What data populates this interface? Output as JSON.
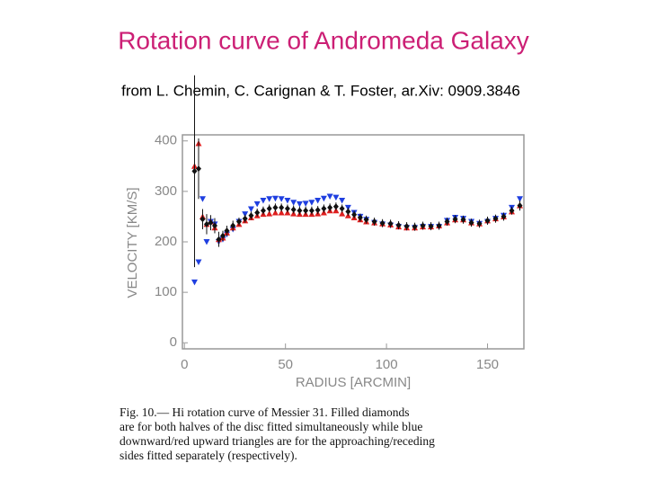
{
  "title": "Rotation curve of Andromeda Galaxy",
  "subtitle": "from L. Chemin, C. Carignan & T. Foster, ar.Xiv: 0909.3846",
  "chart_data": {
    "type": "scatter",
    "x_label": "RADIUS [ARCMIN]",
    "y_label": "VELOCITY [KM/S]",
    "xlim": [
      -1,
      168
    ],
    "ylim": [
      -12,
      412
    ],
    "xticks": [
      0,
      50,
      100,
      150
    ],
    "yticks": [
      0,
      100,
      200,
      300,
      400
    ],
    "x": [
      5,
      7,
      9,
      11,
      13,
      15,
      17,
      19,
      21,
      24,
      27,
      30,
      33,
      36,
      39,
      42,
      45,
      48,
      51,
      54,
      57,
      60,
      63,
      66,
      69,
      72,
      75,
      78,
      81,
      84,
      87,
      90,
      94,
      98,
      102,
      106,
      110,
      114,
      118,
      122,
      126,
      130,
      134,
      138,
      142,
      146,
      150,
      154,
      158,
      162,
      166
    ],
    "series": [
      {
        "color": "#1f3fe0",
        "marker": "triangle-down",
        "values": [
          120,
          160,
          285,
          200,
          240,
          235,
          200,
          205,
          215,
          225,
          240,
          255,
          265,
          275,
          282,
          285,
          286,
          285,
          282,
          278,
          275,
          276,
          278,
          282,
          286,
          290,
          288,
          282,
          268,
          258,
          250,
          244,
          238,
          235,
          233,
          230,
          228,
          228,
          230,
          230,
          230,
          242,
          248,
          246,
          240,
          236,
          240,
          246,
          252,
          268,
          285
        ]
      },
      {
        "color": "#e01f1f",
        "marker": "triangle-up",
        "values": [
          350,
          395,
          250,
          235,
          240,
          228,
          205,
          208,
          218,
          228,
          235,
          242,
          248,
          252,
          255,
          256,
          258,
          258,
          258,
          256,
          255,
          255,
          255,
          256,
          258,
          262,
          262,
          256,
          252,
          248,
          244,
          240,
          238,
          236,
          234,
          230,
          228,
          228,
          230,
          230,
          232,
          238,
          244,
          244,
          238,
          236,
          242,
          246,
          250,
          260,
          272
        ]
      },
      {
        "color": "#111111",
        "marker": "diamond",
        "values": [
          340,
          345,
          245,
          235,
          238,
          232,
          205,
          212,
          222,
          232,
          240,
          246,
          252,
          258,
          262,
          266,
          268,
          268,
          266,
          264,
          262,
          262,
          262,
          263,
          266,
          268,
          270,
          266,
          260,
          254,
          248,
          244,
          240,
          237,
          236,
          233,
          231,
          230,
          232,
          231,
          232,
          240,
          245,
          244,
          238,
          236,
          242,
          246,
          250,
          262,
          272
        ],
        "errors": [
          190,
          60,
          20,
          20,
          15,
          15,
          15,
          10,
          10,
          10,
          8,
          8,
          8,
          8,
          8,
          8,
          8,
          8,
          8,
          8,
          8,
          8,
          8,
          8,
          8,
          8,
          8,
          8,
          8,
          8,
          8,
          8,
          8,
          8,
          8,
          8,
          8,
          8,
          8,
          8,
          8,
          8,
          8,
          8,
          8,
          8,
          8,
          8,
          8,
          8,
          10
        ]
      }
    ],
    "caption": [
      "Fig. 10.— Hi rotation curve of Messier 31. Filled diamonds",
      "are for both halves of the disc fitted simultaneously while blue",
      "downward/red upward triangles are for the approaching/receding",
      "sides fitted separately (respectively)."
    ]
  }
}
